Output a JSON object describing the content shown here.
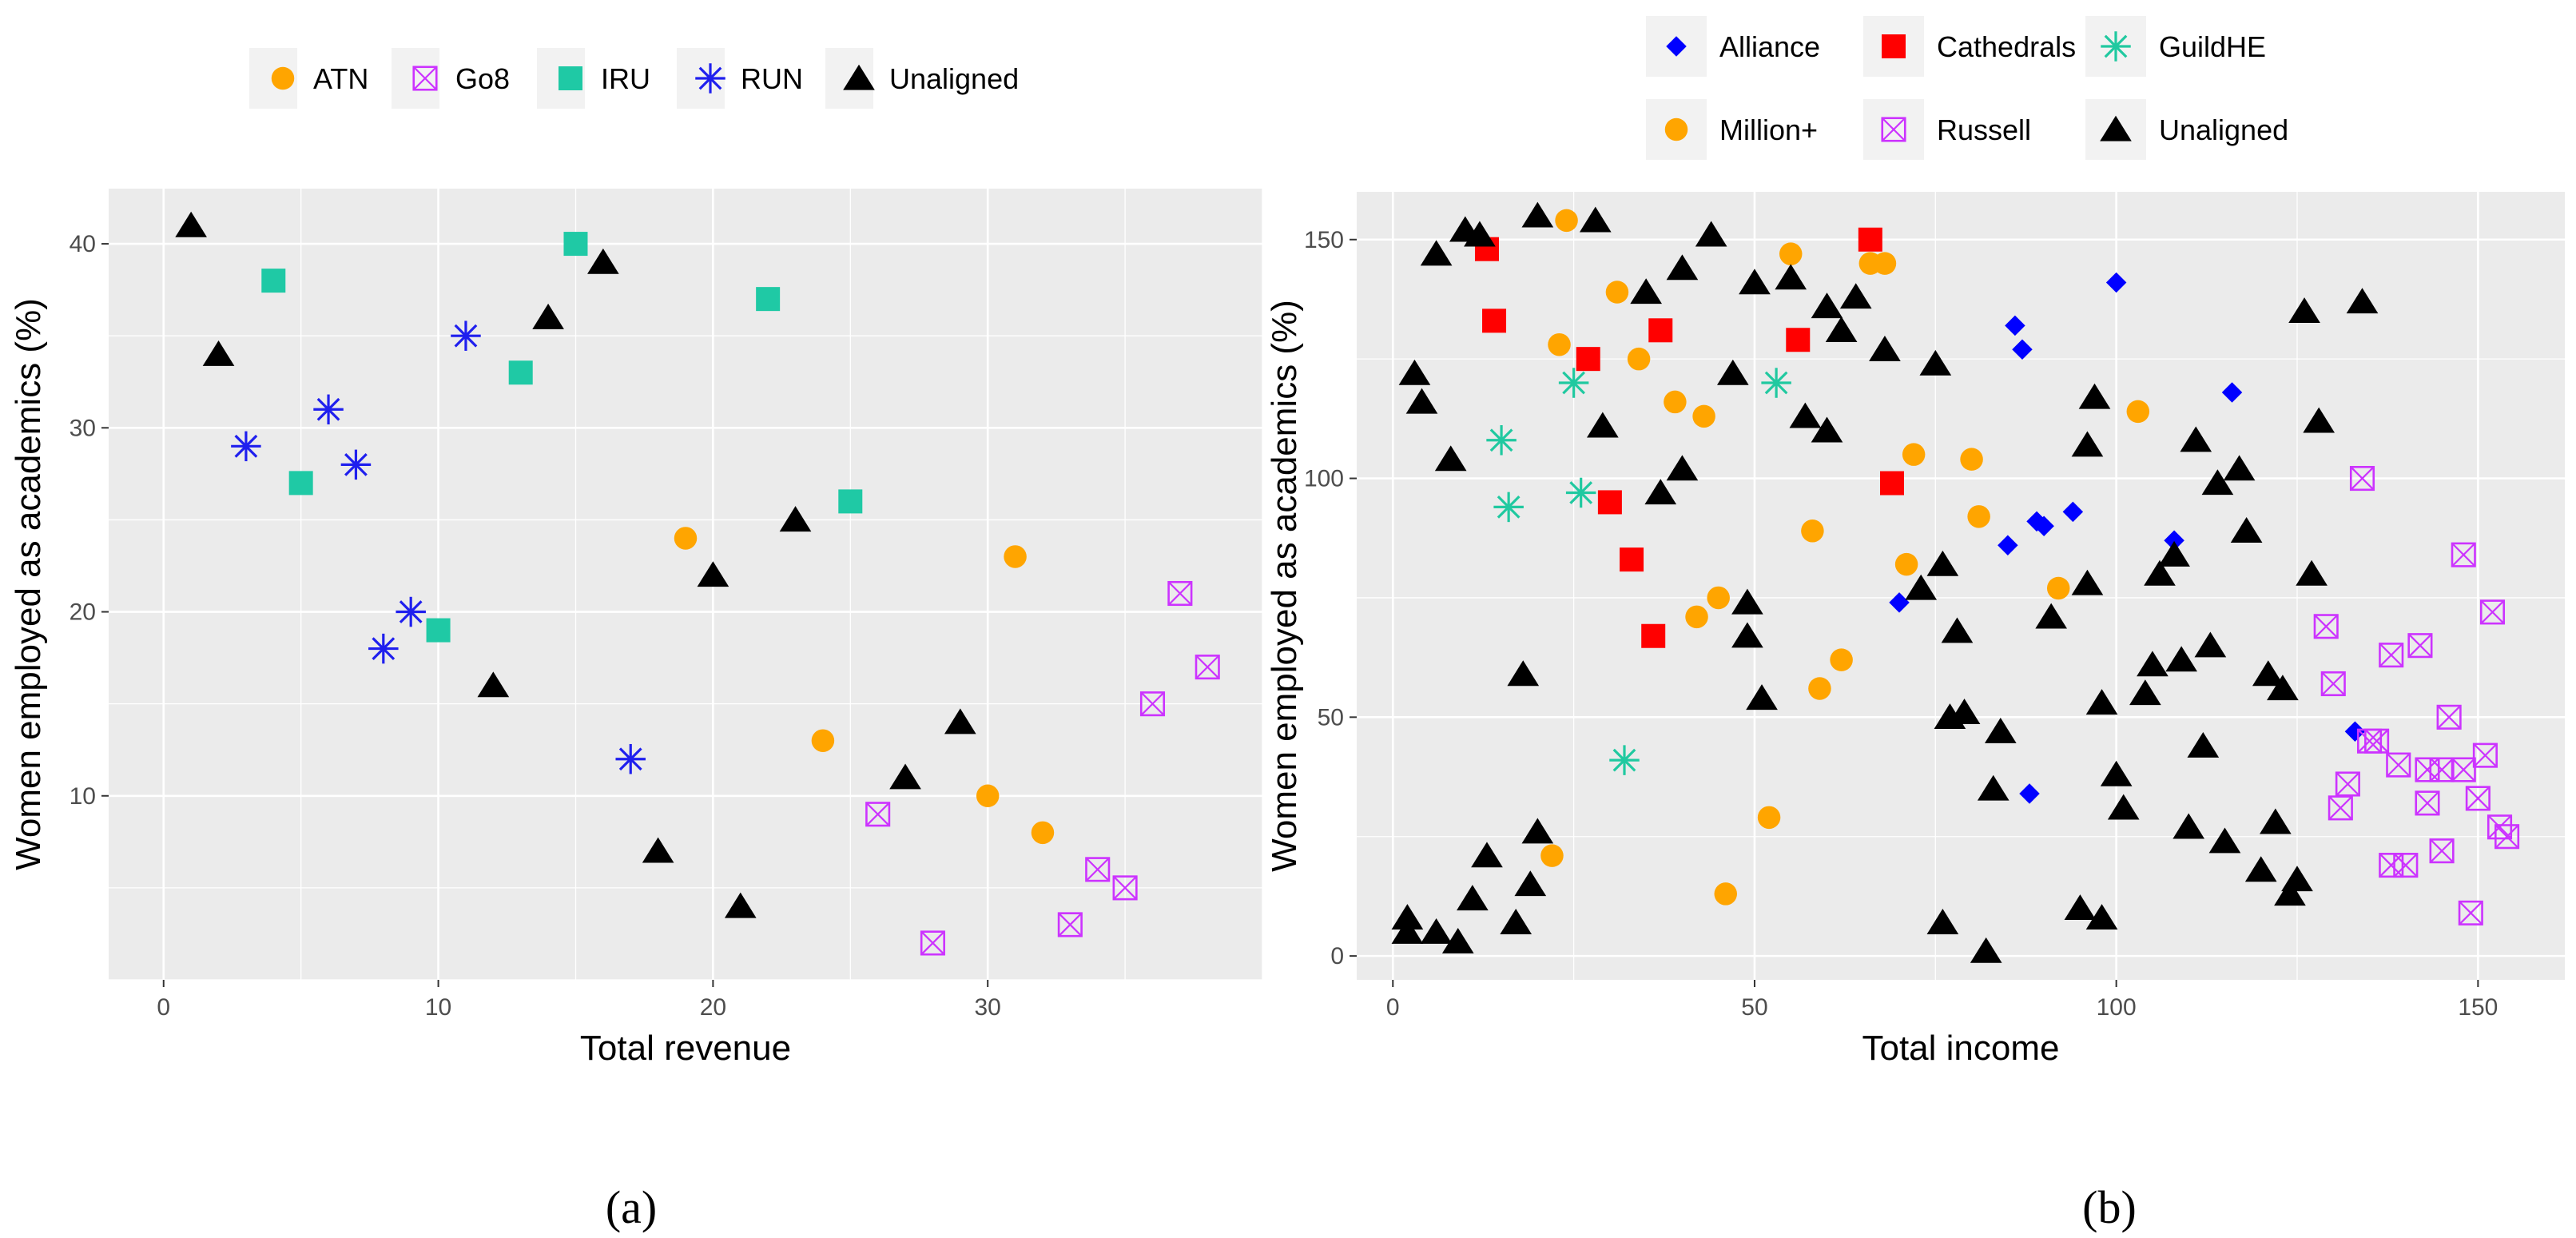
{
  "chart_data": [
    {
      "type": "scatter",
      "panel_caption": "(a)",
      "xlabel": "Total revenue",
      "ylabel": "Women employed as academics (%)",
      "xlim": [
        -2,
        40
      ],
      "ylim": [
        0,
        43
      ],
      "xticks": [
        0,
        10,
        20,
        30
      ],
      "yticks": [
        10,
        20,
        30,
        40
      ],
      "xtick_labels": [
        "0",
        "10",
        "20",
        "30"
      ],
      "ytick_labels": [
        "10",
        "20",
        "30",
        "40"
      ],
      "grid": true,
      "legend_position": "top",
      "series": [
        {
          "name": "ATN",
          "shape": "circle",
          "color": "#FFA500",
          "points": [
            [
              19,
              24
            ],
            [
              31,
              23
            ],
            [
              24,
              13
            ],
            [
              30,
              10
            ],
            [
              32,
              8
            ]
          ]
        },
        {
          "name": "Go8",
          "shape": "square-x",
          "color": "#CC33FF",
          "points": [
            [
              37,
              21
            ],
            [
              38,
              17
            ],
            [
              36,
              15
            ],
            [
              26,
              9
            ],
            [
              34,
              6
            ],
            [
              35,
              5
            ],
            [
              33,
              3
            ],
            [
              28,
              2
            ]
          ]
        },
        {
          "name": "IRU",
          "shape": "square",
          "color": "#1FC9A5",
          "points": [
            [
              4,
              38
            ],
            [
              15,
              40
            ],
            [
              22,
              37
            ],
            [
              13,
              33
            ],
            [
              5,
              27
            ],
            [
              25,
              26
            ],
            [
              10,
              19
            ]
          ]
        },
        {
          "name": "RUN",
          "shape": "star",
          "color": "#1F1FEE",
          "points": [
            [
              3,
              29
            ],
            [
              6,
              31
            ],
            [
              7,
              28
            ],
            [
              11,
              35
            ],
            [
              9,
              20
            ],
            [
              8,
              18
            ],
            [
              17,
              12
            ]
          ]
        },
        {
          "name": "Unaligned",
          "shape": "triangle",
          "color": "#000000",
          "points": [
            [
              1,
              41
            ],
            [
              2,
              34
            ],
            [
              14,
              36
            ],
            [
              16,
              39
            ],
            [
              23,
              25
            ],
            [
              20,
              22
            ],
            [
              12,
              16
            ],
            [
              29,
              14
            ],
            [
              27,
              11
            ],
            [
              18,
              7
            ],
            [
              21,
              4
            ]
          ]
        }
      ]
    },
    {
      "type": "scatter",
      "panel_caption": "(b)",
      "xlabel": "Total income",
      "ylabel": "Women employed as academics (%)",
      "xlim": [
        -5,
        162
      ],
      "ylim": [
        -5,
        160
      ],
      "xticks": [
        0,
        50,
        100,
        150
      ],
      "yticks": [
        0,
        50,
        100,
        150
      ],
      "xtick_labels": [
        "0",
        "50",
        "100",
        "150"
      ],
      "ytick_labels": [
        "0",
        "50",
        "100",
        "150"
      ],
      "grid": true,
      "legend_position": "top",
      "series": [
        {
          "name": "Alliance",
          "shape": "diamond",
          "color": "#0000FF",
          "points": [
            [
              100,
              141
            ],
            [
              86,
              132
            ],
            [
              87,
              127
            ],
            [
              116,
              118
            ],
            [
              89,
              91
            ],
            [
              90,
              90
            ],
            [
              94,
              93
            ],
            [
              85,
              86
            ],
            [
              108,
              87
            ],
            [
              70,
              74
            ],
            [
              133,
              47
            ],
            [
              88,
              34
            ]
          ]
        },
        {
          "name": "Cathedrals",
          "shape": "square",
          "color": "#FF0000",
          "points": [
            [
              66,
              150
            ],
            [
              13,
              148
            ],
            [
              14,
              133
            ],
            [
              37,
              131
            ],
            [
              27,
              125
            ],
            [
              56,
              129
            ],
            [
              69,
              99
            ],
            [
              30,
              95
            ],
            [
              33,
              83
            ],
            [
              36,
              67
            ]
          ]
        },
        {
          "name": "GuildHE",
          "shape": "star",
          "color": "#20C9A0",
          "points": [
            [
              25,
              120
            ],
            [
              53,
              120
            ],
            [
              15,
              108
            ],
            [
              26,
              97
            ],
            [
              16,
              94
            ],
            [
              32,
              41
            ]
          ]
        },
        {
          "name": "Million+",
          "shape": "circle",
          "color": "#FFA500",
          "points": [
            [
              24,
              154
            ],
            [
              55,
              147
            ],
            [
              66,
              145
            ],
            [
              68,
              145
            ],
            [
              31,
              139
            ],
            [
              23,
              128
            ],
            [
              34,
              125
            ],
            [
              39,
              116
            ],
            [
              43,
              113
            ],
            [
              72,
              105
            ],
            [
              80,
              104
            ],
            [
              103,
              114
            ],
            [
              58,
              89
            ],
            [
              81,
              92
            ],
            [
              71,
              82
            ],
            [
              92,
              77
            ],
            [
              45,
              75
            ],
            [
              42,
              71
            ],
            [
              62,
              62
            ],
            [
              59,
              56
            ],
            [
              22,
              21
            ],
            [
              52,
              29
            ],
            [
              46,
              13
            ]
          ]
        },
        {
          "name": "Russell",
          "shape": "square-x",
          "color": "#CC33FF",
          "points": [
            [
              134,
              100
            ],
            [
              148,
              84
            ],
            [
              152,
              72
            ],
            [
              129,
              69
            ],
            [
              130,
              57
            ],
            [
              138,
              63
            ],
            [
              142,
              65
            ],
            [
              146,
              50
            ],
            [
              135,
              45
            ],
            [
              136,
              45
            ],
            [
              139,
              40
            ],
            [
              143,
              39
            ],
            [
              145,
              39
            ],
            [
              148,
              39
            ],
            [
              151,
              42
            ],
            [
              132,
              36
            ],
            [
              131,
              31
            ],
            [
              143,
              32
            ],
            [
              150,
              33
            ],
            [
              153,
              27
            ],
            [
              154,
              25
            ],
            [
              145,
              22
            ],
            [
              138,
              19
            ],
            [
              140,
              19
            ],
            [
              149,
              9
            ]
          ]
        },
        {
          "name": "Unaligned",
          "shape": "triangle",
          "color": "#000000",
          "points": [
            [
              20,
              155
            ],
            [
              28,
              154
            ],
            [
              10,
              152
            ],
            [
              12,
              151
            ],
            [
              44,
              151
            ],
            [
              6,
              147
            ],
            [
              50,
              141
            ],
            [
              55,
              142
            ],
            [
              40,
              144
            ],
            [
              35,
              139
            ],
            [
              60,
              136
            ],
            [
              64,
              138
            ],
            [
              62,
              131
            ],
            [
              68,
              127
            ],
            [
              75,
              124
            ],
            [
              126,
              135
            ],
            [
              134,
              137
            ],
            [
              3,
              122
            ],
            [
              4,
              116
            ],
            [
              47,
              122
            ],
            [
              29,
              111
            ],
            [
              57,
              113
            ],
            [
              60,
              110
            ],
            [
              8,
              104
            ],
            [
              40,
              102
            ],
            [
              37,
              97
            ],
            [
              97,
              117
            ],
            [
              96,
              107
            ],
            [
              111,
              108
            ],
            [
              117,
              102
            ],
            [
              114,
              99
            ],
            [
              128,
              112
            ],
            [
              108,
              84
            ],
            [
              106,
              80
            ],
            [
              96,
              78
            ],
            [
              73,
              77
            ],
            [
              76,
              82
            ],
            [
              91,
              71
            ],
            [
              118,
              89
            ],
            [
              127,
              80
            ],
            [
              49,
              74
            ],
            [
              49,
              67
            ],
            [
              18,
              59
            ],
            [
              51,
              54
            ],
            [
              78,
              68
            ],
            [
              98,
              53
            ],
            [
              77,
              50
            ],
            [
              79,
              51
            ],
            [
              84,
              47
            ],
            [
              105,
              61
            ],
            [
              109,
              62
            ],
            [
              113,
              65
            ],
            [
              104,
              55
            ],
            [
              112,
              44
            ],
            [
              121,
              59
            ],
            [
              123,
              56
            ],
            [
              100,
              38
            ],
            [
              101,
              31
            ],
            [
              83,
              35
            ],
            [
              110,
              27
            ],
            [
              115,
              24
            ],
            [
              120,
              18
            ],
            [
              122,
              28
            ],
            [
              124,
              13
            ],
            [
              125,
              16
            ],
            [
              95,
              10
            ],
            [
              98,
              8
            ],
            [
              76,
              7
            ],
            [
              82,
              1
            ],
            [
              13,
              21
            ],
            [
              20,
              26
            ],
            [
              19,
              15
            ],
            [
              17,
              7
            ],
            [
              11,
              12
            ],
            [
              6,
              5
            ],
            [
              9,
              3
            ],
            [
              2,
              5
            ],
            [
              2,
              8
            ]
          ]
        }
      ]
    }
  ]
}
